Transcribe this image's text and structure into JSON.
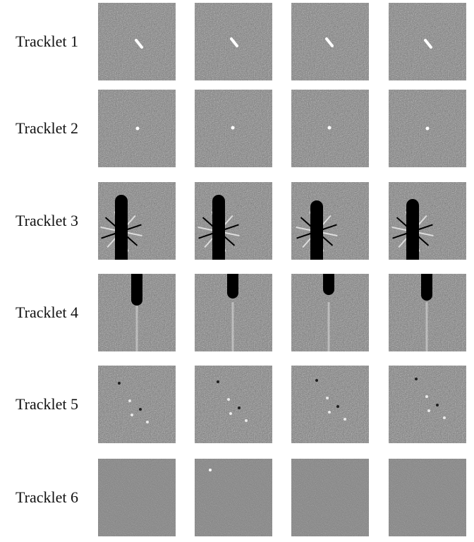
{
  "panel": {
    "tracklets": [
      {
        "label": "Tracklet 1",
        "cutouts": 4,
        "feature": "streak"
      },
      {
        "label": "Tracklet 2",
        "cutouts": 4,
        "feature": "point-source"
      },
      {
        "label": "Tracklet 3",
        "cutouts": 4,
        "feature": "saturated-star-with-spikes"
      },
      {
        "label": "Tracklet 4",
        "cutouts": 4,
        "feature": "bleed-trail"
      },
      {
        "label": "Tracklet 5",
        "cutouts": 4,
        "feature": "faint-artifacts"
      },
      {
        "label": "Tracklet 6",
        "cutouts": 4,
        "feature": "blank-noise"
      }
    ]
  },
  "colors": {
    "background": "#ffffff",
    "noise": "#808080",
    "bright": "#ffffff",
    "dark": "#000000"
  }
}
